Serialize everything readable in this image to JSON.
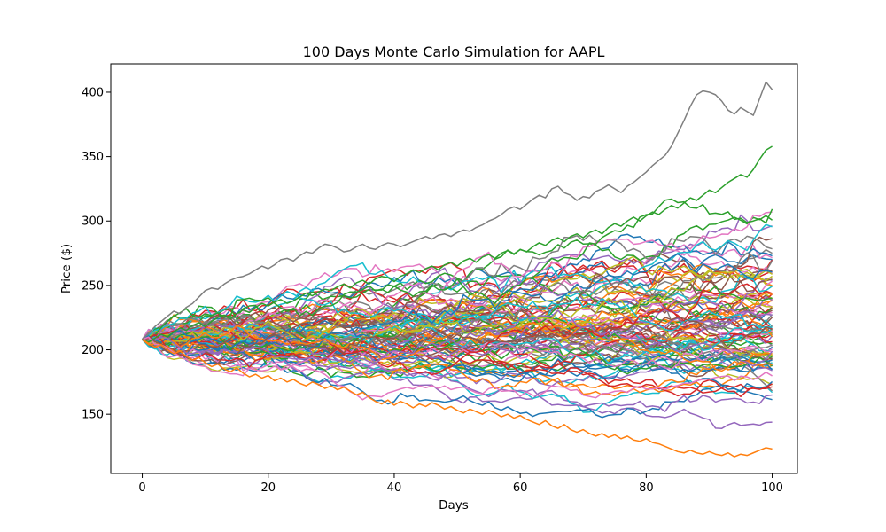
{
  "chart_data": {
    "type": "line",
    "title": "100 Days Monte Carlo Simulation for AAPL",
    "xlabel": "Days",
    "ylabel": "Price ($)",
    "xlim": [
      -5,
      104
    ],
    "ylim": [
      104,
      422
    ],
    "x_ticks": [
      0,
      20,
      40,
      60,
      80,
      100
    ],
    "y_ticks": [
      150,
      200,
      250,
      300,
      350,
      400
    ],
    "grid": false,
    "legend": "none",
    "days": 100,
    "num_simulations": 100,
    "start_price": 208,
    "final_price_range_approx": [
      122,
      402
    ],
    "palette": [
      "#1f77b4",
      "#ff7f0e",
      "#2ca02c",
      "#d62728",
      "#9467bd",
      "#8c564b",
      "#e377c2",
      "#7f7f7f",
      "#bcbd22",
      "#17becf"
    ],
    "series": [
      {
        "name": "",
        "color": "#7f7f7f",
        "values": [
          208,
          213,
          218,
          222,
          226,
          230,
          228,
          233,
          236,
          241,
          246,
          248,
          247,
          251,
          254,
          256,
          257,
          259,
          262,
          265,
          263,
          266,
          270,
          271,
          269,
          273,
          276,
          275,
          279,
          282,
          281,
          279,
          276,
          277,
          280,
          282,
          279,
          278,
          281,
          283,
          282,
          280,
          282,
          284,
          286,
          288,
          286,
          289,
          290,
          288,
          291,
          293,
          292,
          295,
          297,
          300,
          302,
          305,
          309,
          311,
          309,
          313,
          317,
          320,
          318,
          325,
          327,
          322,
          320,
          316,
          319,
          318,
          323,
          325,
          328,
          325,
          322,
          327,
          330,
          334,
          338,
          343,
          347,
          351,
          358,
          368,
          378,
          389,
          398,
          401,
          400,
          398,
          393,
          386,
          383,
          388,
          385,
          382,
          395,
          408,
          402
        ]
      },
      {
        "name": "",
        "color": "#2ca02c",
        "values": [
          208,
          206,
          209,
          212,
          210,
          214,
          217,
          215,
          219,
          221,
          218,
          222,
          225,
          227,
          224,
          228,
          231,
          229,
          233,
          236,
          234,
          237,
          239,
          236,
          238,
          241,
          244,
          242,
          245,
          247,
          246,
          249,
          251,
          248,
          252,
          254,
          251,
          255,
          257,
          256,
          253,
          257,
          259,
          262,
          260,
          263,
          265,
          262,
          266,
          268,
          265,
          269,
          271,
          268,
          272,
          274,
          271,
          275,
          277,
          274,
          278,
          276,
          280,
          283,
          281,
          285,
          287,
          284,
          288,
          290,
          287,
          291,
          293,
          290,
          295,
          298,
          296,
          300,
          303,
          300,
          304,
          307,
          305,
          309,
          312,
          310,
          314,
          318,
          316,
          320,
          324,
          322,
          326,
          330,
          333,
          336,
          334,
          340,
          348,
          355,
          358
        ]
      },
      {
        "name": "",
        "color": "#ff7f0e",
        "values": [
          208,
          205,
          202,
          204,
          200,
          197,
          199,
          195,
          192,
          194,
          190,
          187,
          189,
          185,
          183,
          186,
          182,
          179,
          181,
          178,
          180,
          176,
          178,
          175,
          177,
          174,
          172,
          175,
          173,
          170,
          172,
          169,
          171,
          168,
          165,
          167,
          163,
          160,
          158,
          161,
          157,
          160,
          158,
          155,
          158,
          156,
          159,
          157,
          154,
          156,
          153,
          151,
          154,
          152,
          150,
          153,
          151,
          148,
          150,
          147,
          149,
          146,
          144,
          142,
          145,
          141,
          139,
          142,
          138,
          136,
          138,
          135,
          133,
          135,
          132,
          134,
          131,
          133,
          130,
          129,
          131,
          128,
          127,
          125,
          123,
          121,
          120,
          122,
          120,
          119,
          121,
          119,
          118,
          120,
          117,
          119,
          118,
          120,
          122,
          124,
          123
        ]
      }
    ]
  }
}
